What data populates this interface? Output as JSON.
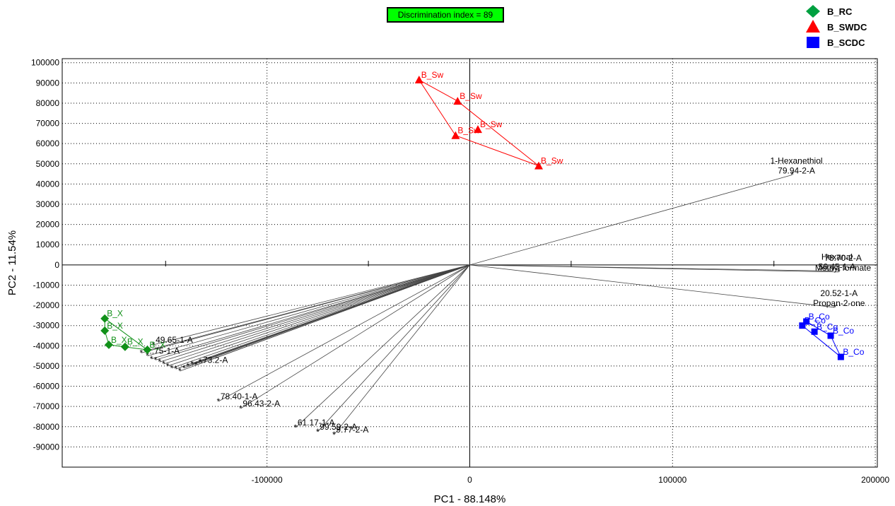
{
  "badge": "Discrimination index = 89",
  "chart_data": {
    "type": "scatter",
    "xlabel": "PC1 - 88.148%",
    "ylabel": "PC2 - 11.54%",
    "xlim": [
      -201000,
      201000
    ],
    "ylim": [
      -100000,
      102000
    ],
    "x_ticks": [
      -100000,
      0,
      100000,
      200000
    ],
    "x_tick_labels": [
      "-100000",
      "0",
      "100000",
      "200000"
    ],
    "y_ticks": [
      100000,
      90000,
      80000,
      70000,
      60000,
      50000,
      40000,
      30000,
      20000,
      10000,
      0,
      -10000,
      -20000,
      -30000,
      -40000,
      -50000,
      -60000,
      -70000,
      -80000,
      -90000
    ],
    "y_tick_labels": [
      "100000",
      "90000",
      "80000",
      "70000",
      "60000",
      "50000",
      "40000",
      "30000",
      "20000",
      "10000",
      "0",
      "-10000",
      "-20000",
      "-30000",
      "-40000",
      "-50000",
      "-60000",
      "-70000",
      "-80000",
      "-90000"
    ],
    "grid": "dotted",
    "legend_position": "top-right",
    "legend": [
      {
        "name": "B_RC",
        "shape": "diamond",
        "color": "#00a040"
      },
      {
        "name": "B_SWDC",
        "shape": "triangle",
        "color": "#ff0000"
      },
      {
        "name": "B_SCDC",
        "shape": "square",
        "color": "#0000ff"
      }
    ],
    "groups": [
      {
        "name": "B_RC",
        "shape": "diamond",
        "color": "#119119",
        "points": [
          {
            "x": -180000,
            "y": -26500,
            "label": "B_X"
          },
          {
            "x": -180000,
            "y": -32500,
            "label": "B_X"
          },
          {
            "x": -178000,
            "y": -39500,
            "label": "B_X"
          },
          {
            "x": -170000,
            "y": -40500,
            "label": "B_X"
          },
          {
            "x": -159000,
            "y": -42000,
            "label": "B_X"
          }
        ]
      },
      {
        "name": "B_SWDC",
        "shape": "triangle",
        "color": "#ff0000",
        "points": [
          {
            "x": -25000,
            "y": 91500,
            "label": "B_Sw"
          },
          {
            "x": -6000,
            "y": 81000,
            "label": "B_Sw"
          },
          {
            "x": -7000,
            "y": 64000,
            "label": "B_Sw"
          },
          {
            "x": 4000,
            "y": 67000,
            "label": "B_Sw"
          },
          {
            "x": 34000,
            "y": 49000,
            "label": "B_Sw"
          }
        ]
      },
      {
        "name": "B_SCDC",
        "shape": "square",
        "color": "#0000ff",
        "points": [
          {
            "x": 164000,
            "y": -30000,
            "label": "B_Co"
          },
          {
            "x": 166000,
            "y": -28000,
            "label": "B_Co"
          },
          {
            "x": 170000,
            "y": -33000,
            "label": "B_Co"
          },
          {
            "x": 178000,
            "y": -35000,
            "label": "B_Co"
          },
          {
            "x": 183000,
            "y": -45500,
            "label": "B_Co"
          }
        ]
      }
    ],
    "loadings": [
      {
        "x": 159000,
        "y": 44500,
        "labels": [
          "1-Hexanethiol",
          "79.94-2-A"
        ]
      },
      {
        "x": 179000,
        "y": -3000,
        "labels": [
          "Hexanal",
          "56.45-1-A"
        ]
      },
      {
        "x": 182000,
        "y": -3500,
        "labels": [
          "78.70-2-A",
          "Methyl formate"
        ]
      },
      {
        "x": 180000,
        "y": -21000,
        "labels": [
          "20.52-1-A",
          "Propan-2-one"
        ]
      },
      {
        "x": -124000,
        "y": -67500,
        "labels": [
          "78.40-1-A"
        ]
      },
      {
        "x": -113000,
        "y": -71000,
        "labels": [
          "96.43-2-A"
        ]
      },
      {
        "x": -86000,
        "y": -80500,
        "labels": [
          "61.17-1-A"
        ]
      },
      {
        "x": -75000,
        "y": -82500,
        "labels": [
          "99.59-2-A"
        ]
      },
      {
        "x": -67000,
        "y": -84000,
        "labels": [
          "9.77-2-A"
        ]
      },
      {
        "x": -156000,
        "y": -39500,
        "labels": [
          "49.65-1-A"
        ]
      },
      {
        "x": -160000,
        "y": -42500,
        "labels": [
          ""
        ]
      },
      {
        "x": -162000,
        "y": -43500,
        "labels": [
          ""
        ]
      },
      {
        "x": -159000,
        "y": -45000,
        "labels": [
          "..75-1-A"
        ]
      },
      {
        "x": -157000,
        "y": -46500,
        "labels": [
          ""
        ]
      },
      {
        "x": -155000,
        "y": -47000,
        "labels": [
          ""
        ]
      },
      {
        "x": -153000,
        "y": -48000,
        "labels": [
          ""
        ]
      },
      {
        "x": -151000,
        "y": -49000,
        "labels": [
          ""
        ]
      },
      {
        "x": -149000,
        "y": -50000,
        "labels": [
          ""
        ]
      },
      {
        "x": -147000,
        "y": -51000,
        "labels": [
          ""
        ]
      },
      {
        "x": -145000,
        "y": -51500,
        "labels": [
          ""
        ]
      },
      {
        "x": -143000,
        "y": -52500,
        "labels": [
          ""
        ]
      },
      {
        "x": -141000,
        "y": -51000,
        "labels": [
          ""
        ]
      },
      {
        "x": -139000,
        "y": -50000,
        "labels": [
          ""
        ]
      },
      {
        "x": -137000,
        "y": -49000,
        "labels": [
          ""
        ]
      },
      {
        "x": -135000,
        "y": -49500,
        "labels": [
          "..73.2-A"
        ]
      },
      {
        "x": -133000,
        "y": -48000,
        "labels": [
          ""
        ]
      }
    ]
  }
}
